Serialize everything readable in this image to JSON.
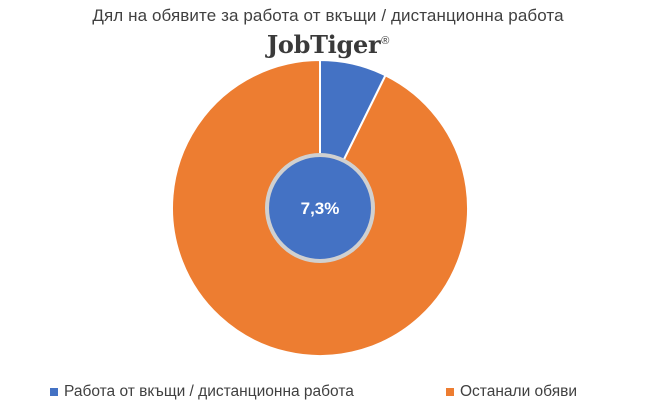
{
  "chart_data": {
    "type": "pie",
    "title": "Дял на обявите за работа от вкъщи / дистанционна работа",
    "brand": "JobTiger",
    "brand_mark": "®",
    "center_label": "7,3%",
    "categories": [
      "Работа от вкъщи / дистанционна работа",
      "Останали обяви"
    ],
    "values": [
      7.3,
      92.7
    ],
    "colors": [
      "#4472C4",
      "#ED7D31"
    ],
    "legend_placement": "bottom"
  }
}
